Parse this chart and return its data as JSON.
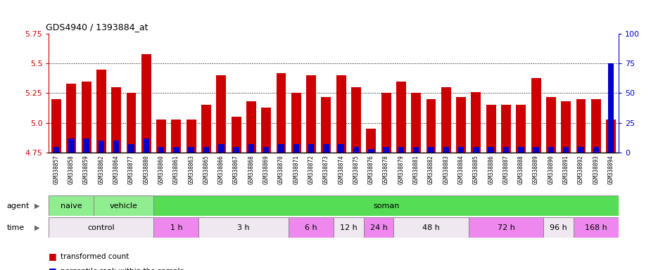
{
  "title": "GDS4940 / 1393884_at",
  "samples": [
    "GSM338857",
    "GSM338858",
    "GSM338859",
    "GSM338862",
    "GSM338864",
    "GSM338877",
    "GSM338880",
    "GSM338860",
    "GSM338861",
    "GSM338863",
    "GSM338865",
    "GSM338866",
    "GSM338867",
    "GSM338868",
    "GSM338869",
    "GSM338870",
    "GSM338871",
    "GSM338872",
    "GSM338873",
    "GSM338874",
    "GSM338875",
    "GSM338876",
    "GSM338878",
    "GSM338879",
    "GSM338881",
    "GSM338882",
    "GSM338883",
    "GSM338884",
    "GSM338885",
    "GSM338886",
    "GSM338887",
    "GSM338888",
    "GSM338889",
    "GSM338890",
    "GSM338891",
    "GSM338892",
    "GSM338893",
    "GSM338894"
  ],
  "transformed_count": [
    5.2,
    5.33,
    5.35,
    5.45,
    5.3,
    5.25,
    5.58,
    5.03,
    5.03,
    5.03,
    5.15,
    5.4,
    5.05,
    5.18,
    5.13,
    5.42,
    5.25,
    5.4,
    5.22,
    5.4,
    5.3,
    4.95,
    5.25,
    5.35,
    5.25,
    5.2,
    5.3,
    5.22,
    5.26,
    5.15,
    5.15,
    5.15,
    5.38,
    5.22,
    5.18,
    5.2,
    5.2,
    5.03
  ],
  "percentile_rank": [
    5,
    12,
    12,
    10,
    10,
    7,
    12,
    5,
    5,
    5,
    5,
    7,
    5,
    7,
    5,
    7,
    7,
    7,
    7,
    7,
    5,
    3,
    5,
    5,
    5,
    5,
    5,
    5,
    5,
    5,
    5,
    5,
    5,
    5,
    5,
    5,
    5,
    75
  ],
  "ylim_left": [
    4.75,
    5.75
  ],
  "ylim_right": [
    0,
    100
  ],
  "yticks_left": [
    4.75,
    5.0,
    5.25,
    5.5,
    5.75
  ],
  "yticks_right": [
    0,
    25,
    50,
    75,
    100
  ],
  "bar_color": "#cc0000",
  "percentile_color": "#0000cc",
  "baseline": 4.75,
  "agent_groups": [
    {
      "label": "naive",
      "start": 0,
      "end": 3,
      "color": "#90ee90"
    },
    {
      "label": "vehicle",
      "start": 3,
      "end": 7,
      "color": "#90ee90"
    },
    {
      "label": "soman",
      "start": 7,
      "end": 38,
      "color": "#55dd55"
    }
  ],
  "time_groups": [
    {
      "label": "control",
      "start": 0,
      "end": 7,
      "color": "#f0e8f0"
    },
    {
      "label": "1 h",
      "start": 7,
      "end": 10,
      "color": "#ee88ee"
    },
    {
      "label": "3 h",
      "start": 10,
      "end": 16,
      "color": "#f0e8f0"
    },
    {
      "label": "6 h",
      "start": 16,
      "end": 19,
      "color": "#ee88ee"
    },
    {
      "label": "12 h",
      "start": 19,
      "end": 21,
      "color": "#f0e8f0"
    },
    {
      "label": "24 h",
      "start": 21,
      "end": 23,
      "color": "#ee88ee"
    },
    {
      "label": "48 h",
      "start": 23,
      "end": 28,
      "color": "#f0e8f0"
    },
    {
      "label": "72 h",
      "start": 28,
      "end": 33,
      "color": "#ee88ee"
    },
    {
      "label": "96 h",
      "start": 33,
      "end": 35,
      "color": "#f0e8f0"
    },
    {
      "label": "168 h",
      "start": 35,
      "end": 38,
      "color": "#ee88ee"
    }
  ],
  "plot_bg": "#ffffff",
  "xtick_bg": "#d8d8d8"
}
